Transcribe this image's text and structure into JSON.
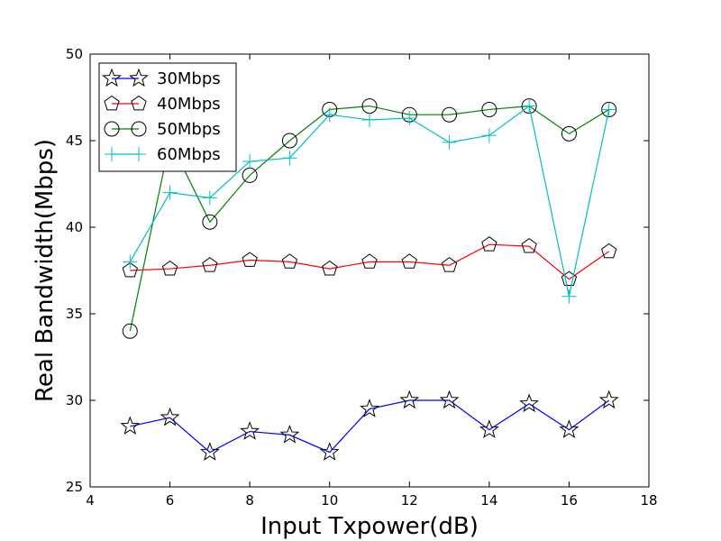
{
  "chart_data": {
    "type": "line",
    "title": "",
    "xlabel": "Input Txpower(dB)",
    "ylabel": "Real Bandwidth(Mbps)",
    "xlim": [
      4,
      18
    ],
    "ylim": [
      25,
      50
    ],
    "xticks": [
      4,
      6,
      8,
      10,
      12,
      14,
      16,
      18
    ],
    "yticks": [
      25,
      30,
      35,
      40,
      45,
      50
    ],
    "grid": false,
    "legend_position": "top-left",
    "x": [
      5,
      6,
      7,
      8,
      9,
      10,
      11,
      12,
      13,
      14,
      15,
      16,
      17
    ],
    "series": [
      {
        "name": "30Mbps",
        "color": "#0000ff",
        "marker": "star",
        "values": [
          28.5,
          29.0,
          27.0,
          28.2,
          28.0,
          27.0,
          29.5,
          30.0,
          30.0,
          28.3,
          29.8,
          28.3,
          30.0
        ]
      },
      {
        "name": "40Mbps",
        "color": "#ff0000",
        "marker": "pentagon",
        "values": [
          37.5,
          37.6,
          37.8,
          38.1,
          38.0,
          37.6,
          38.0,
          38.0,
          37.8,
          39.0,
          38.9,
          37.0,
          38.6
        ]
      },
      {
        "name": "50Mbps",
        "color": "#008000",
        "marker": "circle",
        "values": [
          34.0,
          45.0,
          40.3,
          43.0,
          45.0,
          46.8,
          47.0,
          46.5,
          46.5,
          46.8,
          47.0,
          45.4,
          46.8
        ]
      },
      {
        "name": "60Mbps",
        "color": "#00bfbf",
        "marker": "plus",
        "values": [
          38.0,
          42.0,
          41.7,
          43.8,
          44.0,
          46.5,
          46.2,
          46.3,
          44.9,
          45.3,
          47.0,
          36.0,
          46.8
        ]
      }
    ]
  }
}
